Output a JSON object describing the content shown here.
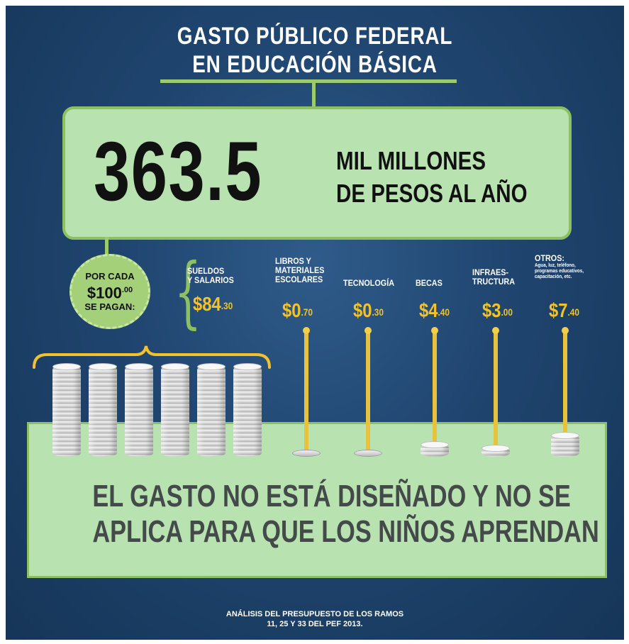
{
  "title": {
    "line1": "GASTO PÚBLICO FEDERAL",
    "line2": "EN EDUCACIÓN BÁSICA"
  },
  "total": {
    "value": "363.5",
    "unit_line1": "MIL MILLONES",
    "unit_line2": "DE PESOS AL AÑO"
  },
  "badge": {
    "line1": "POR CADA",
    "amount": "$100",
    "amount_cents": ".00",
    "line3": "SE PAGAN:"
  },
  "message": {
    "line1": "EL GASTO NO ESTÁ DISEÑADO Y NO SE",
    "line2": "APLICA PARA QUE LOS NIÑOS APRENDAN"
  },
  "footer": {
    "line1": "ANÁLISIS DEL PRESUPUESTO DE LOS RAMOS",
    "line2": "11, 25 Y 33 DEL PEF 2013."
  },
  "categories": [
    {
      "label": "SUELDOS\nY SALARIOS",
      "whole": "$84",
      "cents": ".30"
    },
    {
      "label": "LIBROS Y\nMATERIALES\nESCOLARES",
      "whole": "$0",
      "cents": ".70"
    },
    {
      "label": "TECNOLOGÍA",
      "whole": "$0",
      "cents": ".30"
    },
    {
      "label": "BECAS",
      "whole": "$4",
      "cents": ".40"
    },
    {
      "label": "INFRAES-\nTRUCTURA",
      "whole": "$3",
      "cents": ".00"
    },
    {
      "label": "OTROS:",
      "sublabel": "Agua, luz, teléfono,\nprogramas educativos,\ncapacitación, etc.",
      "whole": "$7",
      "cents": ".40"
    }
  ],
  "chart_data": {
    "type": "bar",
    "title": "GASTO PÚBLICO FEDERAL EN EDUCACIÓN BÁSICA",
    "categories": [
      "SUELDOS Y SALARIOS",
      "LIBROS Y MATERIALES ESCOLARES",
      "TECNOLOGÍA",
      "BECAS",
      "INFRAESTRUCTURA",
      "OTROS"
    ],
    "values": [
      84.3,
      0.7,
      0.3,
      4.4,
      3.0,
      7.4
    ]
  },
  "colors": {
    "background": "#1f456f",
    "green_box": "#b8e3b1",
    "green_border": "#8cc063",
    "amount": "#f2c22c",
    "text_dark": "#111111",
    "message_text": "#444a4a"
  }
}
